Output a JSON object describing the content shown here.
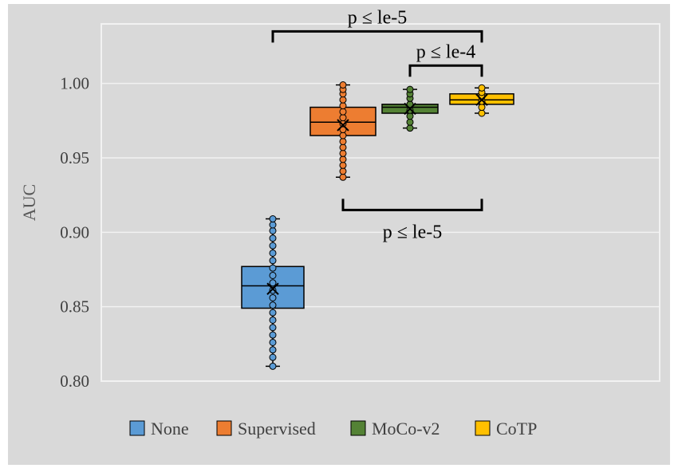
{
  "chart_data": {
    "type": "box",
    "title": "",
    "xlabel": "",
    "ylabel": "AUC",
    "ylim": [
      0.8,
      1.04
    ],
    "yticks": [
      "0.80",
      "0.85",
      "0.90",
      "0.95",
      "1.00"
    ],
    "ytick_values": [
      0.8,
      0.85,
      0.9,
      0.95,
      1.0
    ],
    "grid": true,
    "legend_position": "bottom",
    "series": [
      {
        "name": "None",
        "color": "#5B9BD5",
        "min": 0.81,
        "q1": 0.849,
        "median": 0.864,
        "q3": 0.877,
        "max": 0.909,
        "mean": 0.862,
        "points": [
          0.81,
          0.816,
          0.821,
          0.826,
          0.831,
          0.836,
          0.841,
          0.846,
          0.851,
          0.856,
          0.861,
          0.866,
          0.871,
          0.876,
          0.881,
          0.886,
          0.891,
          0.896,
          0.901,
          0.905,
          0.909
        ]
      },
      {
        "name": "Supervised",
        "color": "#ED7D31",
        "min": 0.937,
        "q1": 0.965,
        "median": 0.974,
        "q3": 0.984,
        "max": 0.999,
        "mean": 0.972,
        "points": [
          0.937,
          0.941,
          0.945,
          0.949,
          0.953,
          0.957,
          0.961,
          0.965,
          0.969,
          0.973,
          0.977,
          0.981,
          0.985,
          0.989,
          0.993,
          0.996,
          0.999
        ]
      },
      {
        "name": "MoCo-v2",
        "color": "#548235",
        "min": 0.97,
        "q1": 0.98,
        "median": 0.984,
        "q3": 0.986,
        "max": 0.996,
        "mean": 0.983,
        "points": [
          0.97,
          0.974,
          0.978,
          0.982,
          0.986,
          0.99,
          0.993,
          0.996
        ]
      },
      {
        "name": "CoTP",
        "color": "#FFC000",
        "min": 0.98,
        "q1": 0.986,
        "median": 0.989,
        "q3": 0.993,
        "max": 0.997,
        "mean": 0.989,
        "points": [
          0.98,
          0.984,
          0.988,
          0.991,
          0.994,
          0.997
        ]
      }
    ],
    "annotations": [
      {
        "label": "p ≤ le-5",
        "from": "None",
        "to": "CoTP",
        "level": 1.035,
        "position": "above"
      },
      {
        "label": "p ≤ le-4",
        "from": "MoCo-v2",
        "to": "CoTP",
        "level": 1.012,
        "position": "above"
      },
      {
        "label": "p ≤ le-5",
        "from": "Supervised",
        "to": "CoTP",
        "level": 0.915,
        "position": "below"
      }
    ]
  }
}
